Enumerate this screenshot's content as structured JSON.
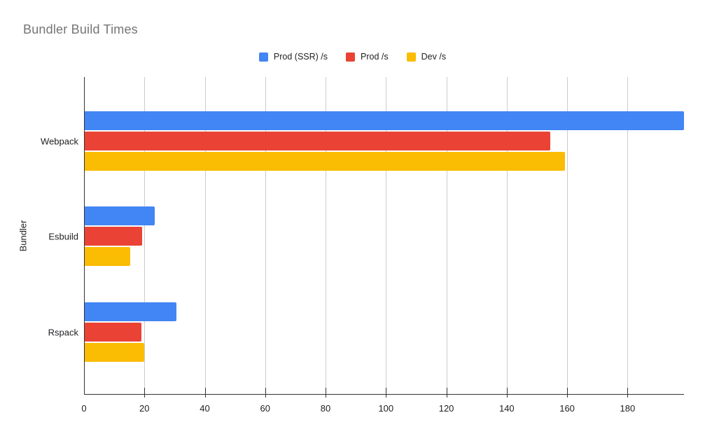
{
  "title": "Bundler Build Times",
  "chart_data": {
    "type": "bar",
    "orientation": "horizontal",
    "title": "Bundler Build Times",
    "xlabel": "",
    "ylabel": "Bundler",
    "categories": [
      "Webpack",
      "Esbuild",
      "Rspack"
    ],
    "series": [
      {
        "name": "Prod (SSR) /s",
        "color": "#4285F4",
        "values": [
          198.7,
          23.5,
          30.6
        ]
      },
      {
        "name": "Prod /s",
        "color": "#EA4335",
        "values": [
          154.3,
          19.3,
          19.1
        ]
      },
      {
        "name": "Dev /s",
        "color": "#FBBC04",
        "values": [
          159.3,
          15.2,
          20.0
        ]
      }
    ],
    "xlim": [
      0,
      198.7
    ],
    "xticks": [
      0,
      20,
      40,
      60,
      80,
      100,
      120,
      140,
      160,
      180
    ],
    "grid": true,
    "legend_position": "top"
  },
  "colors": {
    "title_text": "#757575",
    "axis_text": "#202124",
    "gridline": "#cccccc",
    "axis_line": "#333333",
    "background": "#ffffff"
  }
}
